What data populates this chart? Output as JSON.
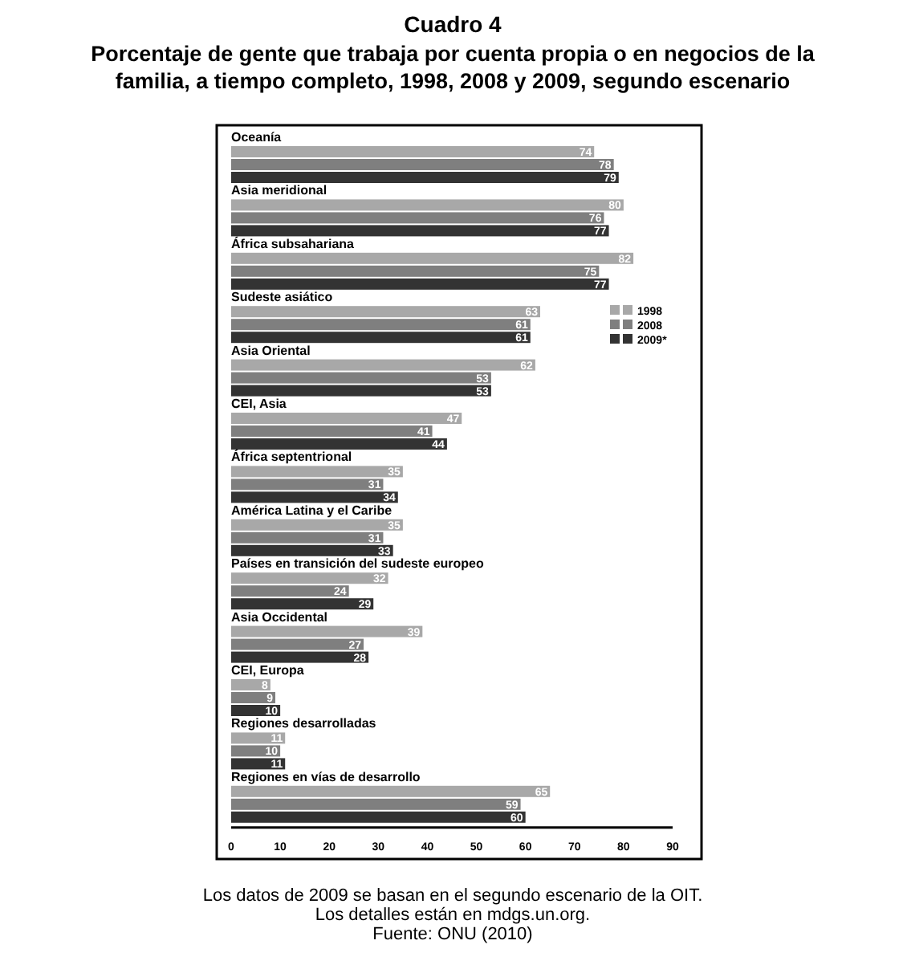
{
  "chart_data": {
    "type": "bar",
    "orientation": "horizontal",
    "title": "Cuadro 4",
    "subtitle": "Porcentaje de gente que trabaja por cuenta propia o en negocios de la familia, a tiempo completo, 1998, 2008 y 2009, segundo escenario",
    "categories": [
      "Oceanía",
      "Asia meridional",
      "África subsahariana",
      "Sudeste asiático",
      "Asia Oriental",
      "CEI, Asia",
      "África septentrional",
      "América Latina y el Caribe",
      "Países en transición del sudeste europeo",
      "Asia Occidental",
      "CEI, Europa",
      "Regiones desarrolladas",
      "Regiones en vías de desarrollo"
    ],
    "series": [
      {
        "name": "1998",
        "color": "#a8a8a8",
        "values": [
          74,
          80,
          82,
          63,
          62,
          47,
          35,
          35,
          32,
          39,
          8,
          11,
          65
        ]
      },
      {
        "name": "2008",
        "color": "#7f7f7f",
        "values": [
          78,
          76,
          75,
          61,
          53,
          41,
          31,
          31,
          24,
          27,
          9,
          10,
          59
        ]
      },
      {
        "name": "2009*",
        "color": "#333333",
        "values": [
          79,
          77,
          77,
          61,
          53,
          44,
          34,
          33,
          29,
          28,
          10,
          11,
          60
        ]
      }
    ],
    "xlim": [
      0,
      90
    ],
    "xticks": [
      0,
      10,
      20,
      30,
      40,
      50,
      60,
      70,
      80,
      90
    ],
    "data_labels": true,
    "legend": "right",
    "grid": false,
    "annotations": [
      "Los datos de 2009 se basan en el segundo escenario de la OIT.",
      "Los detalles están en mdgs.un.org.",
      "Fuente: ONU (2010)"
    ]
  }
}
